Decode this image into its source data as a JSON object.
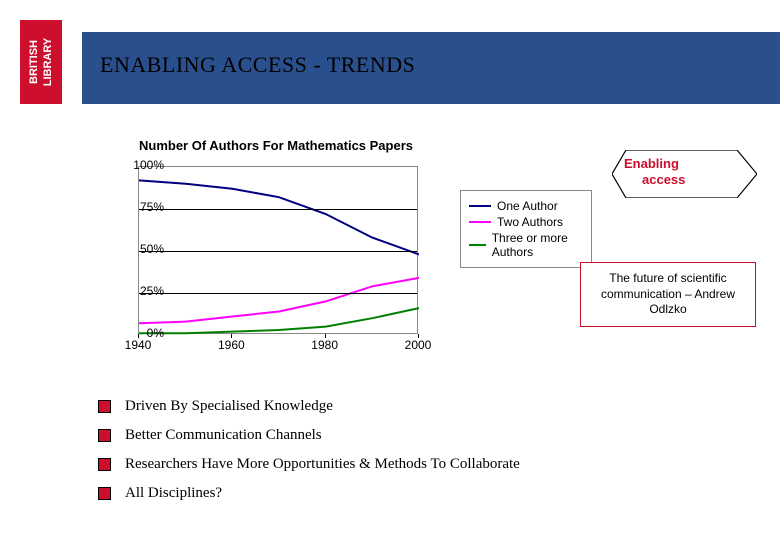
{
  "header": {
    "title": "ENABLING ACCESS - TRENDS",
    "band_color": "#2a4f8d",
    "logo_color": "#ce0e2d"
  },
  "chart": {
    "type": "line",
    "title": "Number Of Authors For Mathematics Papers",
    "title_fontsize": 13,
    "background_color": "#ffffff",
    "grid_color": "#000000",
    "xlim": [
      1940,
      2000
    ],
    "ylim": [
      0,
      100
    ],
    "y_unit": "%",
    "yticks": [
      0,
      25,
      50,
      75,
      100
    ],
    "ytick_labels": [
      "0%",
      "25%",
      "50%",
      "75%",
      "100%"
    ],
    "xticks": [
      1940,
      1960,
      1980,
      2000
    ],
    "xtick_labels": [
      "1940",
      "1960",
      "1980",
      "2000"
    ],
    "series": [
      {
        "name": "One Author",
        "color": "#000080",
        "line_width": 2,
        "x": [
          1940,
          1950,
          1960,
          1970,
          1980,
          1990,
          2000
        ],
        "y": [
          92,
          90,
          87,
          82,
          72,
          58,
          48
        ]
      },
      {
        "name": "Two Authors",
        "color": "#ff00ff",
        "line_width": 2,
        "x": [
          1940,
          1950,
          1960,
          1970,
          1980,
          1990,
          2000
        ],
        "y": [
          7,
          8,
          11,
          14,
          20,
          29,
          34
        ]
      },
      {
        "name": "Three or more Authors",
        "color": "#008000",
        "line_width": 2,
        "x": [
          1940,
          1950,
          1960,
          1970,
          1980,
          1990,
          2000
        ],
        "y": [
          1,
          1,
          2,
          3,
          5,
          10,
          16
        ]
      }
    ],
    "legend": {
      "position": "right",
      "border_color": "#888888",
      "items": [
        "One Author",
        "Two Authors",
        "Three or more Authors"
      ]
    }
  },
  "enabling_shape": {
    "line1": "Enabling",
    "line2": "access",
    "text_color": "#ce0e2d",
    "border_color": "#000000",
    "fill": "#ffffff"
  },
  "attribution": {
    "text": "The future of scientific communication – Andrew Odlzko",
    "border_color": "#ce0e2d"
  },
  "bullets": {
    "marker_color": "#ce0e2d",
    "items": [
      "Driven By Specialised Knowledge",
      "Better Communication Channels",
      "Researchers Have More Opportunities & Methods To Collaborate",
      "All Disciplines?"
    ]
  }
}
